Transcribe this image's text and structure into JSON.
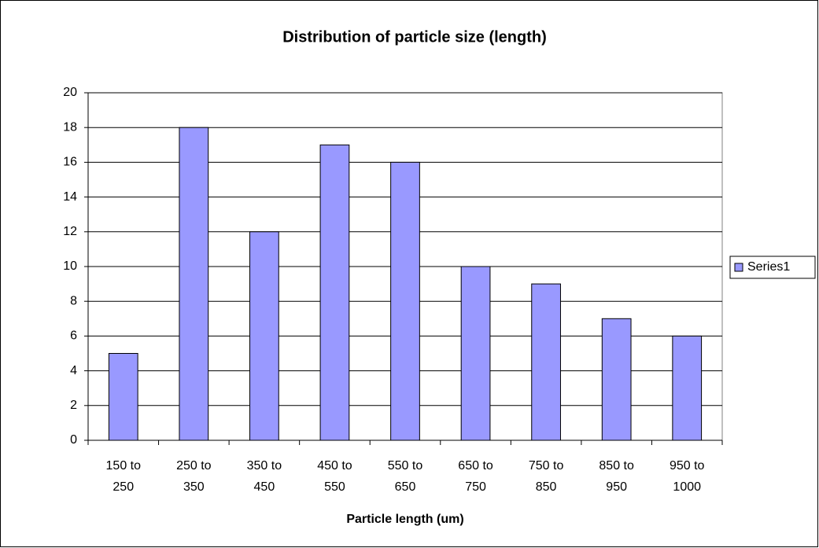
{
  "chart_data": {
    "type": "bar",
    "title": "Distribution of particle size (length)",
    "x_label": "Particle length (um)",
    "categories": [
      "150 to 250",
      "250 to 350",
      "350 to 450",
      "450 to 550",
      "550 to 650",
      "650 to 750",
      "750 to 850",
      "850 to 950",
      "950 to 1000"
    ],
    "series": [
      {
        "name": "Series1",
        "color": "#9999ff",
        "values": [
          5,
          18,
          12,
          17,
          16,
          10,
          9,
          7,
          6
        ]
      }
    ],
    "ylim": [
      0,
      20
    ],
    "yticks": [
      0,
      2,
      4,
      6,
      8,
      10,
      12,
      14,
      16,
      18,
      20
    ],
    "grid": true,
    "legend": "right"
  }
}
